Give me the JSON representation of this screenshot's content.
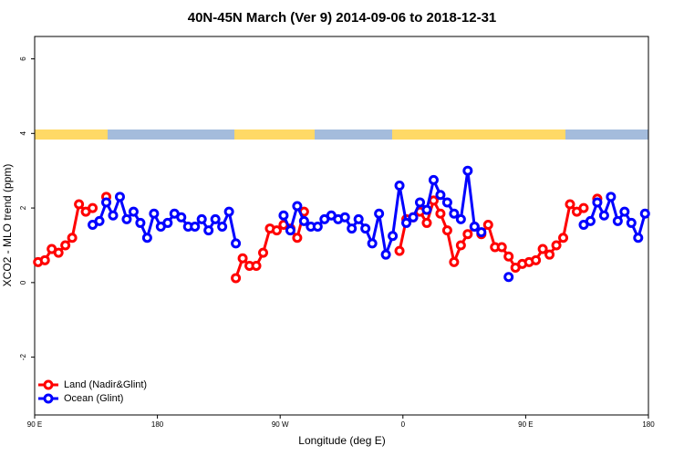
{
  "chart_data": {
    "type": "line",
    "title": "40N-45N March (Ver 9)   2014-09-06 to 2018-12-31",
    "x_label": "Longitude (deg E)",
    "y_label": "XCO2 - MLO trend (ppm)",
    "x": [
      92.5,
      97.5,
      102.5,
      107.5,
      112.5,
      117.5,
      122.5,
      127.5,
      132.5,
      137.5,
      142.5,
      147.5,
      152.5,
      157.5,
      162.5,
      167.5,
      172.5,
      177.5,
      182.5,
      187.5,
      192.5,
      197.5,
      202.5,
      207.5,
      212.5,
      217.5,
      222.5,
      227.5,
      232.5,
      237.5,
      242.5,
      247.5,
      252.5,
      257.5,
      262.5,
      267.5,
      272.5,
      277.5,
      282.5,
      287.5,
      292.5,
      297.5,
      302.5,
      307.5,
      312.5,
      317.5,
      322.5,
      327.5,
      332.5,
      337.5,
      342.5,
      347.5,
      352.5,
      357.5,
      362.5,
      367.5,
      372.5,
      377.5,
      382.5,
      387.5,
      392.5,
      397.5,
      402.5,
      407.5,
      412.5,
      417.5,
      422.5,
      427.5,
      432.5,
      437.5,
      442.5,
      447.5,
      452.5,
      457.5,
      462.5,
      467.5,
      472.5,
      477.5,
      482.5,
      487.5,
      492.5,
      497.5,
      502.5,
      507.5,
      512.5,
      517.5,
      522.5,
      527.5,
      532.5,
      537.5
    ],
    "series": [
      {
        "name": "Land (Nadir&Glint)",
        "color": "#ff0000",
        "values": [
          0.55,
          0.6,
          0.9,
          0.8,
          1.0,
          1.2,
          2.1,
          1.9,
          2.0,
          null,
          2.3,
          null,
          null,
          null,
          null,
          null,
          null,
          null,
          null,
          null,
          null,
          null,
          null,
          null,
          null,
          null,
          null,
          null,
          null,
          0.12,
          0.65,
          0.45,
          0.45,
          0.8,
          1.45,
          1.4,
          1.55,
          1.45,
          1.2,
          1.9,
          null,
          null,
          null,
          null,
          null,
          null,
          null,
          null,
          null,
          null,
          null,
          null,
          null,
          0.85,
          1.7,
          1.75,
          1.9,
          1.6,
          2.2,
          1.85,
          1.4,
          0.55,
          1.0,
          1.3,
          1.5,
          1.3,
          1.55,
          0.95,
          0.95,
          0.7,
          0.4,
          0.5,
          0.55,
          0.6,
          0.9,
          0.75,
          1.0,
          1.2,
          2.1,
          1.9,
          2.0,
          null,
          2.25,
          null,
          null,
          null,
          null,
          null,
          null,
          null
        ]
      },
      {
        "name": "Ocean (Glint)",
        "color": "#0000ff",
        "values": [
          null,
          null,
          null,
          null,
          null,
          null,
          null,
          null,
          1.55,
          1.65,
          2.15,
          1.8,
          2.3,
          1.7,
          1.9,
          1.6,
          1.2,
          1.85,
          1.5,
          1.6,
          1.85,
          1.75,
          1.5,
          1.5,
          1.7,
          1.4,
          1.7,
          1.5,
          1.9,
          1.05,
          null,
          null,
          null,
          null,
          null,
          null,
          1.8,
          1.4,
          2.05,
          1.65,
          1.5,
          1.5,
          1.7,
          1.8,
          1.7,
          1.75,
          1.45,
          1.7,
          1.45,
          1.05,
          1.85,
          0.75,
          1.25,
          2.6,
          1.6,
          1.75,
          2.15,
          1.95,
          2.75,
          2.35,
          2.15,
          1.85,
          1.7,
          3.0,
          1.5,
          1.35,
          null,
          null,
          null,
          0.15,
          null,
          null,
          null,
          null,
          null,
          null,
          null,
          null,
          null,
          null,
          1.55,
          1.65,
          2.15,
          1.8,
          2.3,
          1.65,
          1.9,
          1.6,
          1.2,
          1.85
        ]
      }
    ],
    "xlim": [
      90,
      540
    ],
    "ylim": [
      -3.55,
      6.6
    ],
    "xticks": [
      {
        "value": 90,
        "label": "90 E"
      },
      180,
      {
        "value": 270,
        "label": "90 W"
      },
      {
        "value": 360,
        "label": "0"
      },
      {
        "value": 450,
        "label": "90 E"
      },
      {
        "value": 540,
        "label": "180"
      }
    ],
    "yticks": [
      -2,
      0,
      2,
      4,
      6
    ],
    "grid": false,
    "legend": "bottom-left"
  }
}
